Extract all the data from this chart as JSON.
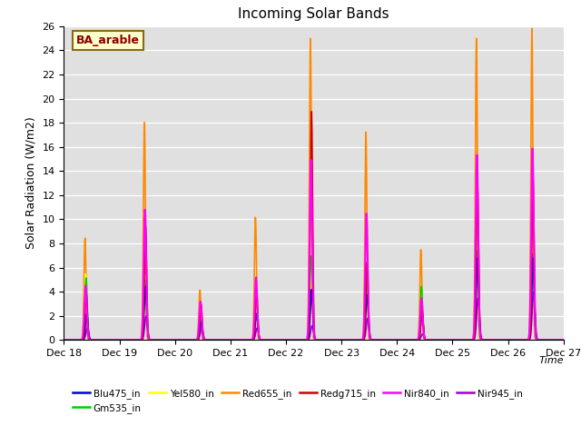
{
  "title": "Incoming Solar Bands",
  "ylabel": "Solar Radiation (W/m2)",
  "annotation": "BA_arable",
  "ylim": [
    0,
    26
  ],
  "background_color": "#e0e0e0",
  "legend_entries": [
    {
      "label": "Blu475_in",
      "color": "#0000cc"
    },
    {
      "label": "Gm535_in",
      "color": "#00cc00"
    },
    {
      "label": "Yel580_in",
      "color": "#ffff00"
    },
    {
      "label": "Red655_in",
      "color": "#ff8800"
    },
    {
      "label": "Redg715_in",
      "color": "#cc0000"
    },
    {
      "label": "Nir840_in",
      "color": "#ff00ff"
    },
    {
      "label": "Nir945_in",
      "color": "#9900cc"
    }
  ],
  "days": [
    "Dec 18",
    "Dec 19",
    "Dec 20",
    "Dec 21",
    "Dec 22",
    "Dec 23",
    "Dec 24",
    "Dec 25",
    "Dec 26",
    "Dec 27"
  ],
  "day_peaks": {
    "Red655_in": [
      8.5,
      18.2,
      4.2,
      10.3,
      25.0,
      17.3,
      7.5,
      25.0,
      25.8
    ],
    "Nir840_in": [
      4.5,
      10.8,
      3.2,
      5.2,
      15.0,
      10.5,
      3.5,
      15.5,
      16.0
    ],
    "Redg715_in": [
      4.0,
      9.5,
      3.0,
      4.2,
      19.0,
      6.5,
      2.5,
      13.0,
      13.5
    ],
    "Gm535_in": [
      5.2,
      5.0,
      1.8,
      4.2,
      7.0,
      5.8,
      4.5,
      7.5,
      7.2
    ],
    "Blu475_in": [
      2.2,
      4.5,
      1.5,
      2.2,
      4.2,
      3.8,
      2.2,
      6.8,
      6.8
    ],
    "Yel580_in": [
      5.5,
      5.5,
      2.2,
      2.5,
      4.8,
      4.5,
      4.5,
      7.8,
      7.5
    ],
    "Nir945_in": [
      1.0,
      2.0,
      1.0,
      1.0,
      1.2,
      1.8,
      0.5,
      3.5,
      4.0
    ]
  },
  "day_offsets": {
    "Red655_in": [
      0.38,
      0.45,
      0.45,
      0.45,
      0.44,
      0.44,
      0.43,
      0.43,
      0.43
    ],
    "Nir840_in": [
      0.39,
      0.46,
      0.46,
      0.46,
      0.45,
      0.45,
      0.44,
      0.44,
      0.44
    ],
    "Redg715_in": [
      0.4,
      0.47,
      0.47,
      0.47,
      0.46,
      0.46,
      0.45,
      0.45,
      0.45
    ],
    "Gm535_in": [
      0.4,
      0.46,
      0.46,
      0.46,
      0.45,
      0.45,
      0.44,
      0.44,
      0.44
    ],
    "Blu475_in": [
      0.41,
      0.47,
      0.47,
      0.47,
      0.46,
      0.46,
      0.45,
      0.45,
      0.45
    ],
    "Yel580_in": [
      0.39,
      0.46,
      0.46,
      0.46,
      0.45,
      0.45,
      0.44,
      0.44,
      0.44
    ],
    "Nir945_in": [
      0.42,
      0.48,
      0.48,
      0.48,
      0.47,
      0.47,
      0.46,
      0.46,
      0.46
    ]
  },
  "widths": {
    "Red655_in": 0.018,
    "Nir840_in": 0.022,
    "Redg715_in": 0.02,
    "Gm535_in": 0.022,
    "Blu475_in": 0.022,
    "Yel580_in": 0.022,
    "Nir945_in": 0.025
  }
}
